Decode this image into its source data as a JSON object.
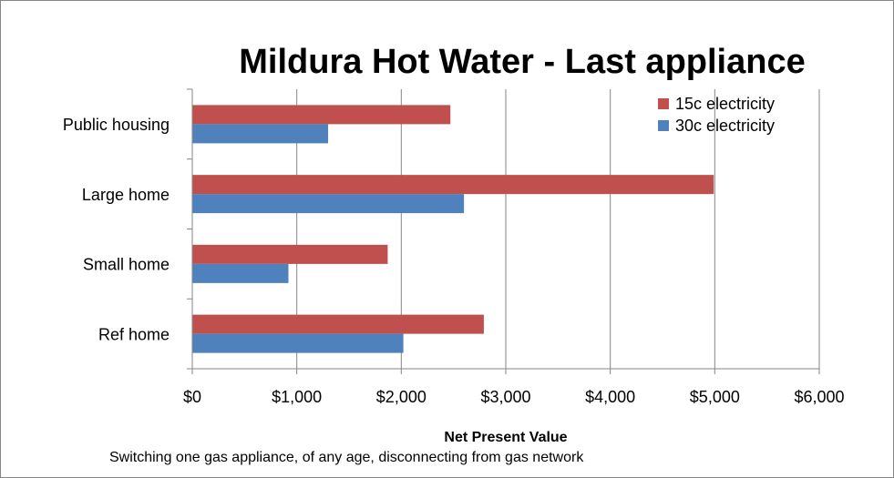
{
  "chart_data": {
    "type": "bar",
    "orientation": "horizontal",
    "title": "Mildura Hot Water - Last appliance",
    "x_label": "Net Present Value",
    "annotation": "Switching one gas appliance, of any age, disconnecting from gas network",
    "categories": [
      "Public housing",
      "Large home",
      "Small home",
      "Ref home"
    ],
    "series": [
      {
        "name": "15c electricity",
        "color": "#c0504d",
        "values": [
          2470,
          4990,
          1870,
          2790
        ]
      },
      {
        "name": "30c electricity",
        "color": "#4f81bd",
        "values": [
          1300,
          2600,
          920,
          2020
        ]
      }
    ],
    "xlim": [
      0,
      6000
    ],
    "xticks": [
      {
        "value": 0,
        "label": "$0"
      },
      {
        "value": 1000,
        "label": "$1,000"
      },
      {
        "value": 2000,
        "label": "$2,000"
      },
      {
        "value": 3000,
        "label": "$3,000"
      },
      {
        "value": 4000,
        "label": "$4,000"
      },
      {
        "value": 5000,
        "label": "$5,000"
      },
      {
        "value": 6000,
        "label": "$6,000"
      }
    ],
    "grid": true,
    "legend": "top-right"
  }
}
